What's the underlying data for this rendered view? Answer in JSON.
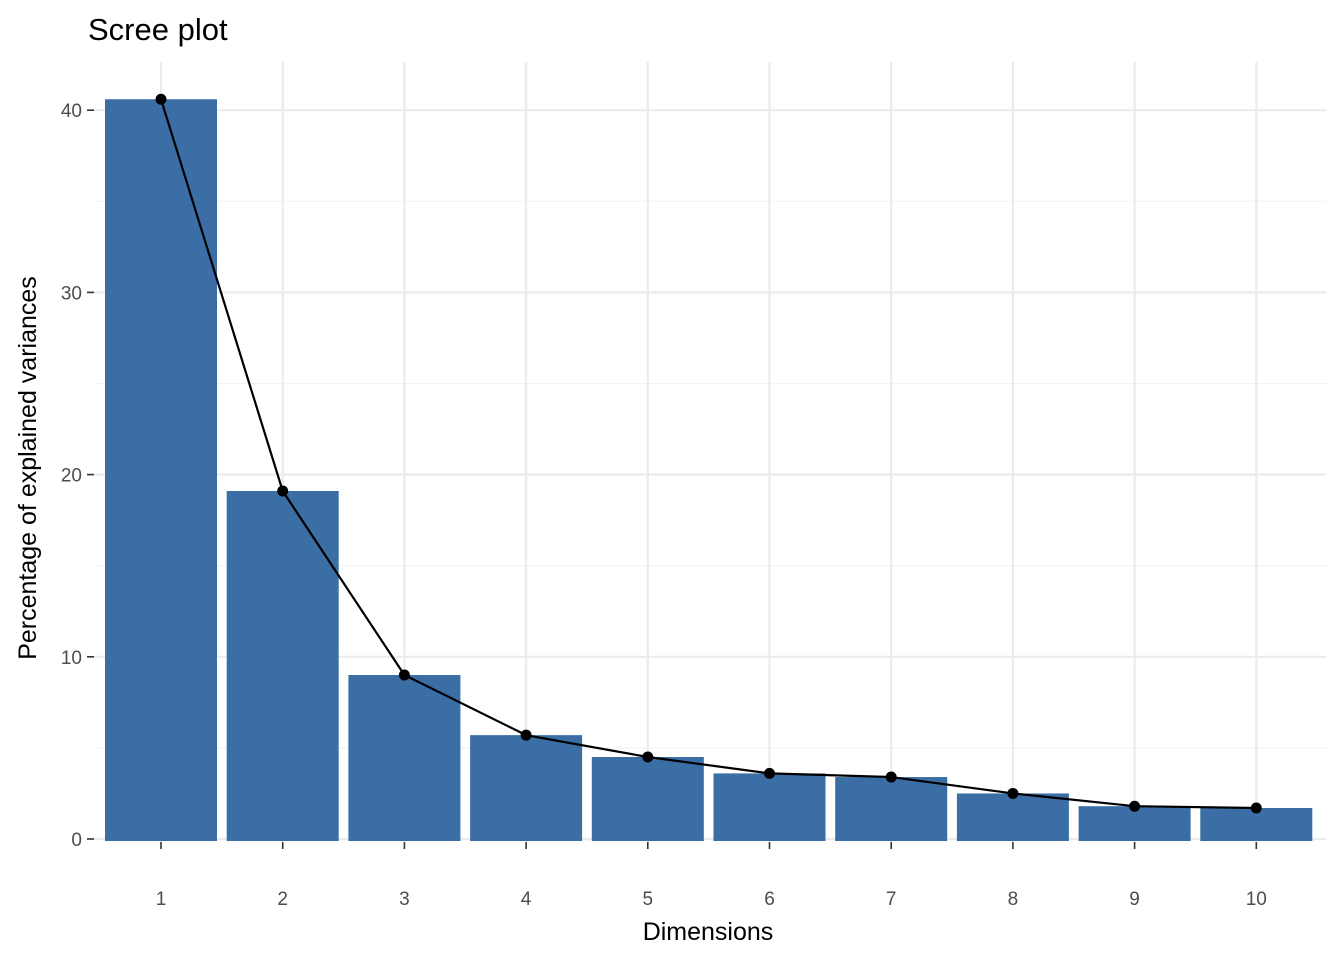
{
  "chart_data": {
    "type": "bar",
    "title": "Scree plot",
    "xlabel": "Dimensions",
    "ylabel": "Percentage of explained variances",
    "categories": [
      "1",
      "2",
      "3",
      "4",
      "5",
      "6",
      "7",
      "8",
      "9",
      "10"
    ],
    "values": [
      40.6,
      19.1,
      9.0,
      5.7,
      4.5,
      3.6,
      3.4,
      2.5,
      1.8,
      1.7
    ],
    "overlay": "line-with-points",
    "ylim": [
      0,
      42.65
    ],
    "yticks": [
      0,
      10,
      20,
      30,
      40
    ],
    "grid": true,
    "bar_color": "#3a6ea5",
    "line_color": "#000000"
  }
}
